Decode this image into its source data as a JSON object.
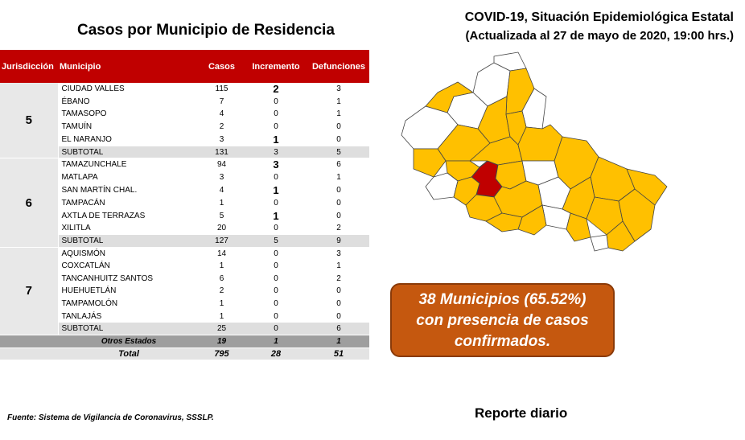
{
  "table_title": "Casos por Municipio  de Residencia",
  "report": {
    "title": "COVID-19, Situación Epidemiológica Estatal",
    "subtitle": "(Actualizada al 27 de mayo de 2020, 19:00 hrs.)"
  },
  "headers": {
    "jurisdiccion": "Jurisdicción",
    "municipio": "Municipio",
    "casos": "Casos",
    "incremento": "Incremento",
    "defunciones": "Defunciones"
  },
  "groups": [
    {
      "jurisdiccion": "5",
      "rows": [
        {
          "municipio": "CIUDAD VALLES",
          "casos": "115",
          "incremento": "2",
          "defunciones": "3"
        },
        {
          "municipio": "ÉBANO",
          "casos": "7",
          "incremento": "0",
          "defunciones": "1"
        },
        {
          "municipio": "TAMASOPO",
          "casos": "4",
          "incremento": "0",
          "defunciones": "1"
        },
        {
          "municipio": "TAMUÍN",
          "casos": "2",
          "incremento": "0",
          "defunciones": "0"
        },
        {
          "municipio": "EL NARANJO",
          "casos": "3",
          "incremento": "1",
          "defunciones": "0"
        }
      ],
      "subtotal": {
        "label": "SUBTOTAL",
        "casos": "131",
        "incremento": "3",
        "defunciones": "5"
      }
    },
    {
      "jurisdiccion": "6",
      "rows": [
        {
          "municipio": "TAMAZUNCHALE",
          "casos": "94",
          "incremento": "3",
          "defunciones": "6"
        },
        {
          "municipio": "MATLAPA",
          "casos": "3",
          "incremento": "0",
          "defunciones": "1"
        },
        {
          "municipio": "SAN MARTÍN CHAL.",
          "casos": "4",
          "incremento": "1",
          "defunciones": "0"
        },
        {
          "municipio": "TAMPACÁN",
          "casos": "1",
          "incremento": "0",
          "defunciones": "0"
        },
        {
          "municipio": "AXTLA DE TERRAZAS",
          "casos": "5",
          "incremento": "1",
          "defunciones": "0"
        },
        {
          "municipio": "XILITLA",
          "casos": "20",
          "incremento": "0",
          "defunciones": "2"
        }
      ],
      "subtotal": {
        "label": "SUBTOTAL",
        "casos": "127",
        "incremento": "5",
        "defunciones": "9"
      }
    },
    {
      "jurisdiccion": "7",
      "rows": [
        {
          "municipio": "AQUISMÓN",
          "casos": "14",
          "incremento": "0",
          "defunciones": "3"
        },
        {
          "municipio": "COXCATLÁN",
          "casos": "1",
          "incremento": "0",
          "defunciones": "1"
        },
        {
          "municipio": "TANCANHUITZ SANTOS",
          "casos": "6",
          "incremento": "0",
          "defunciones": "2"
        },
        {
          "municipio": "HUEHUETLÁN",
          "casos": "2",
          "incremento": "0",
          "defunciones": "0"
        },
        {
          "municipio": "TAMPAMOLÓN",
          "casos": "1",
          "incremento": "0",
          "defunciones": "0"
        },
        {
          "municipio": "TANLAJÁS",
          "casos": "1",
          "incremento": "0",
          "defunciones": "0"
        }
      ],
      "subtotal": {
        "label": "SUBTOTAL",
        "casos": "25",
        "incremento": "0",
        "defunciones": "6"
      }
    }
  ],
  "otros": {
    "label": "Otros Estados",
    "casos": "19",
    "incremento": "1",
    "defunciones": "1"
  },
  "total": {
    "label": "Total",
    "casos": "795",
    "incremento": "28",
    "defunciones": "51"
  },
  "callout": {
    "line1": "38 Municipios (65.52%)",
    "line2": "con presencia de casos",
    "line3": "confirmados."
  },
  "reporte": "Reporte diario",
  "fuente": "Fuente: Sistema de Vigilancia de Coronavirus, SSSLP.",
  "colors": {
    "header": "#c00000",
    "map_cases": "#ffc000",
    "map_highlight": "#c00000",
    "callout": "#c5580f"
  }
}
